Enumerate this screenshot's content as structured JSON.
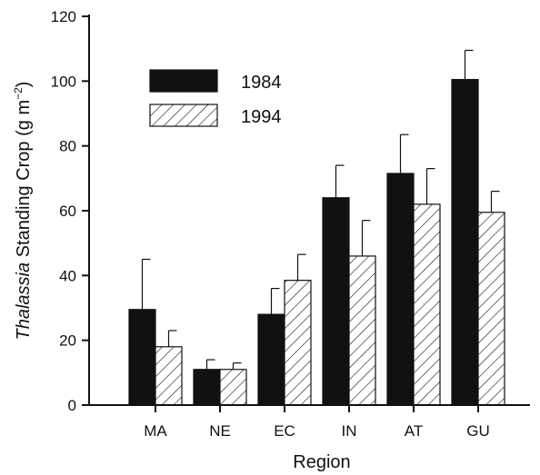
{
  "chart_data": {
    "type": "bar",
    "xlabel": "Region",
    "ylabel_italic": "Thalassia",
    "ylabel_rest": " Standing Crop (g m",
    "ylabel_sup": "−2",
    "ylabel_close": ")",
    "ylim": [
      0,
      120
    ],
    "yticks": [
      "0",
      "20",
      "40",
      "60",
      "80",
      "100",
      "120"
    ],
    "categories": [
      "MA",
      "NE",
      "EC",
      "IN",
      "AT",
      "GU"
    ],
    "series": [
      {
        "name": "1984",
        "style": "solid",
        "color": "#111111",
        "values": [
          29.5,
          11,
          28,
          64,
          71.5,
          100.5
        ],
        "errors": [
          15.5,
          3,
          8,
          10,
          12,
          9
        ]
      },
      {
        "name": "1994",
        "style": "hatched",
        "color": "#ffffff",
        "values": [
          18,
          11,
          38.5,
          46,
          62,
          59.5
        ],
        "errors": [
          5,
          2,
          8,
          11,
          11,
          6.5
        ]
      }
    ],
    "legend_position": "top-left"
  }
}
